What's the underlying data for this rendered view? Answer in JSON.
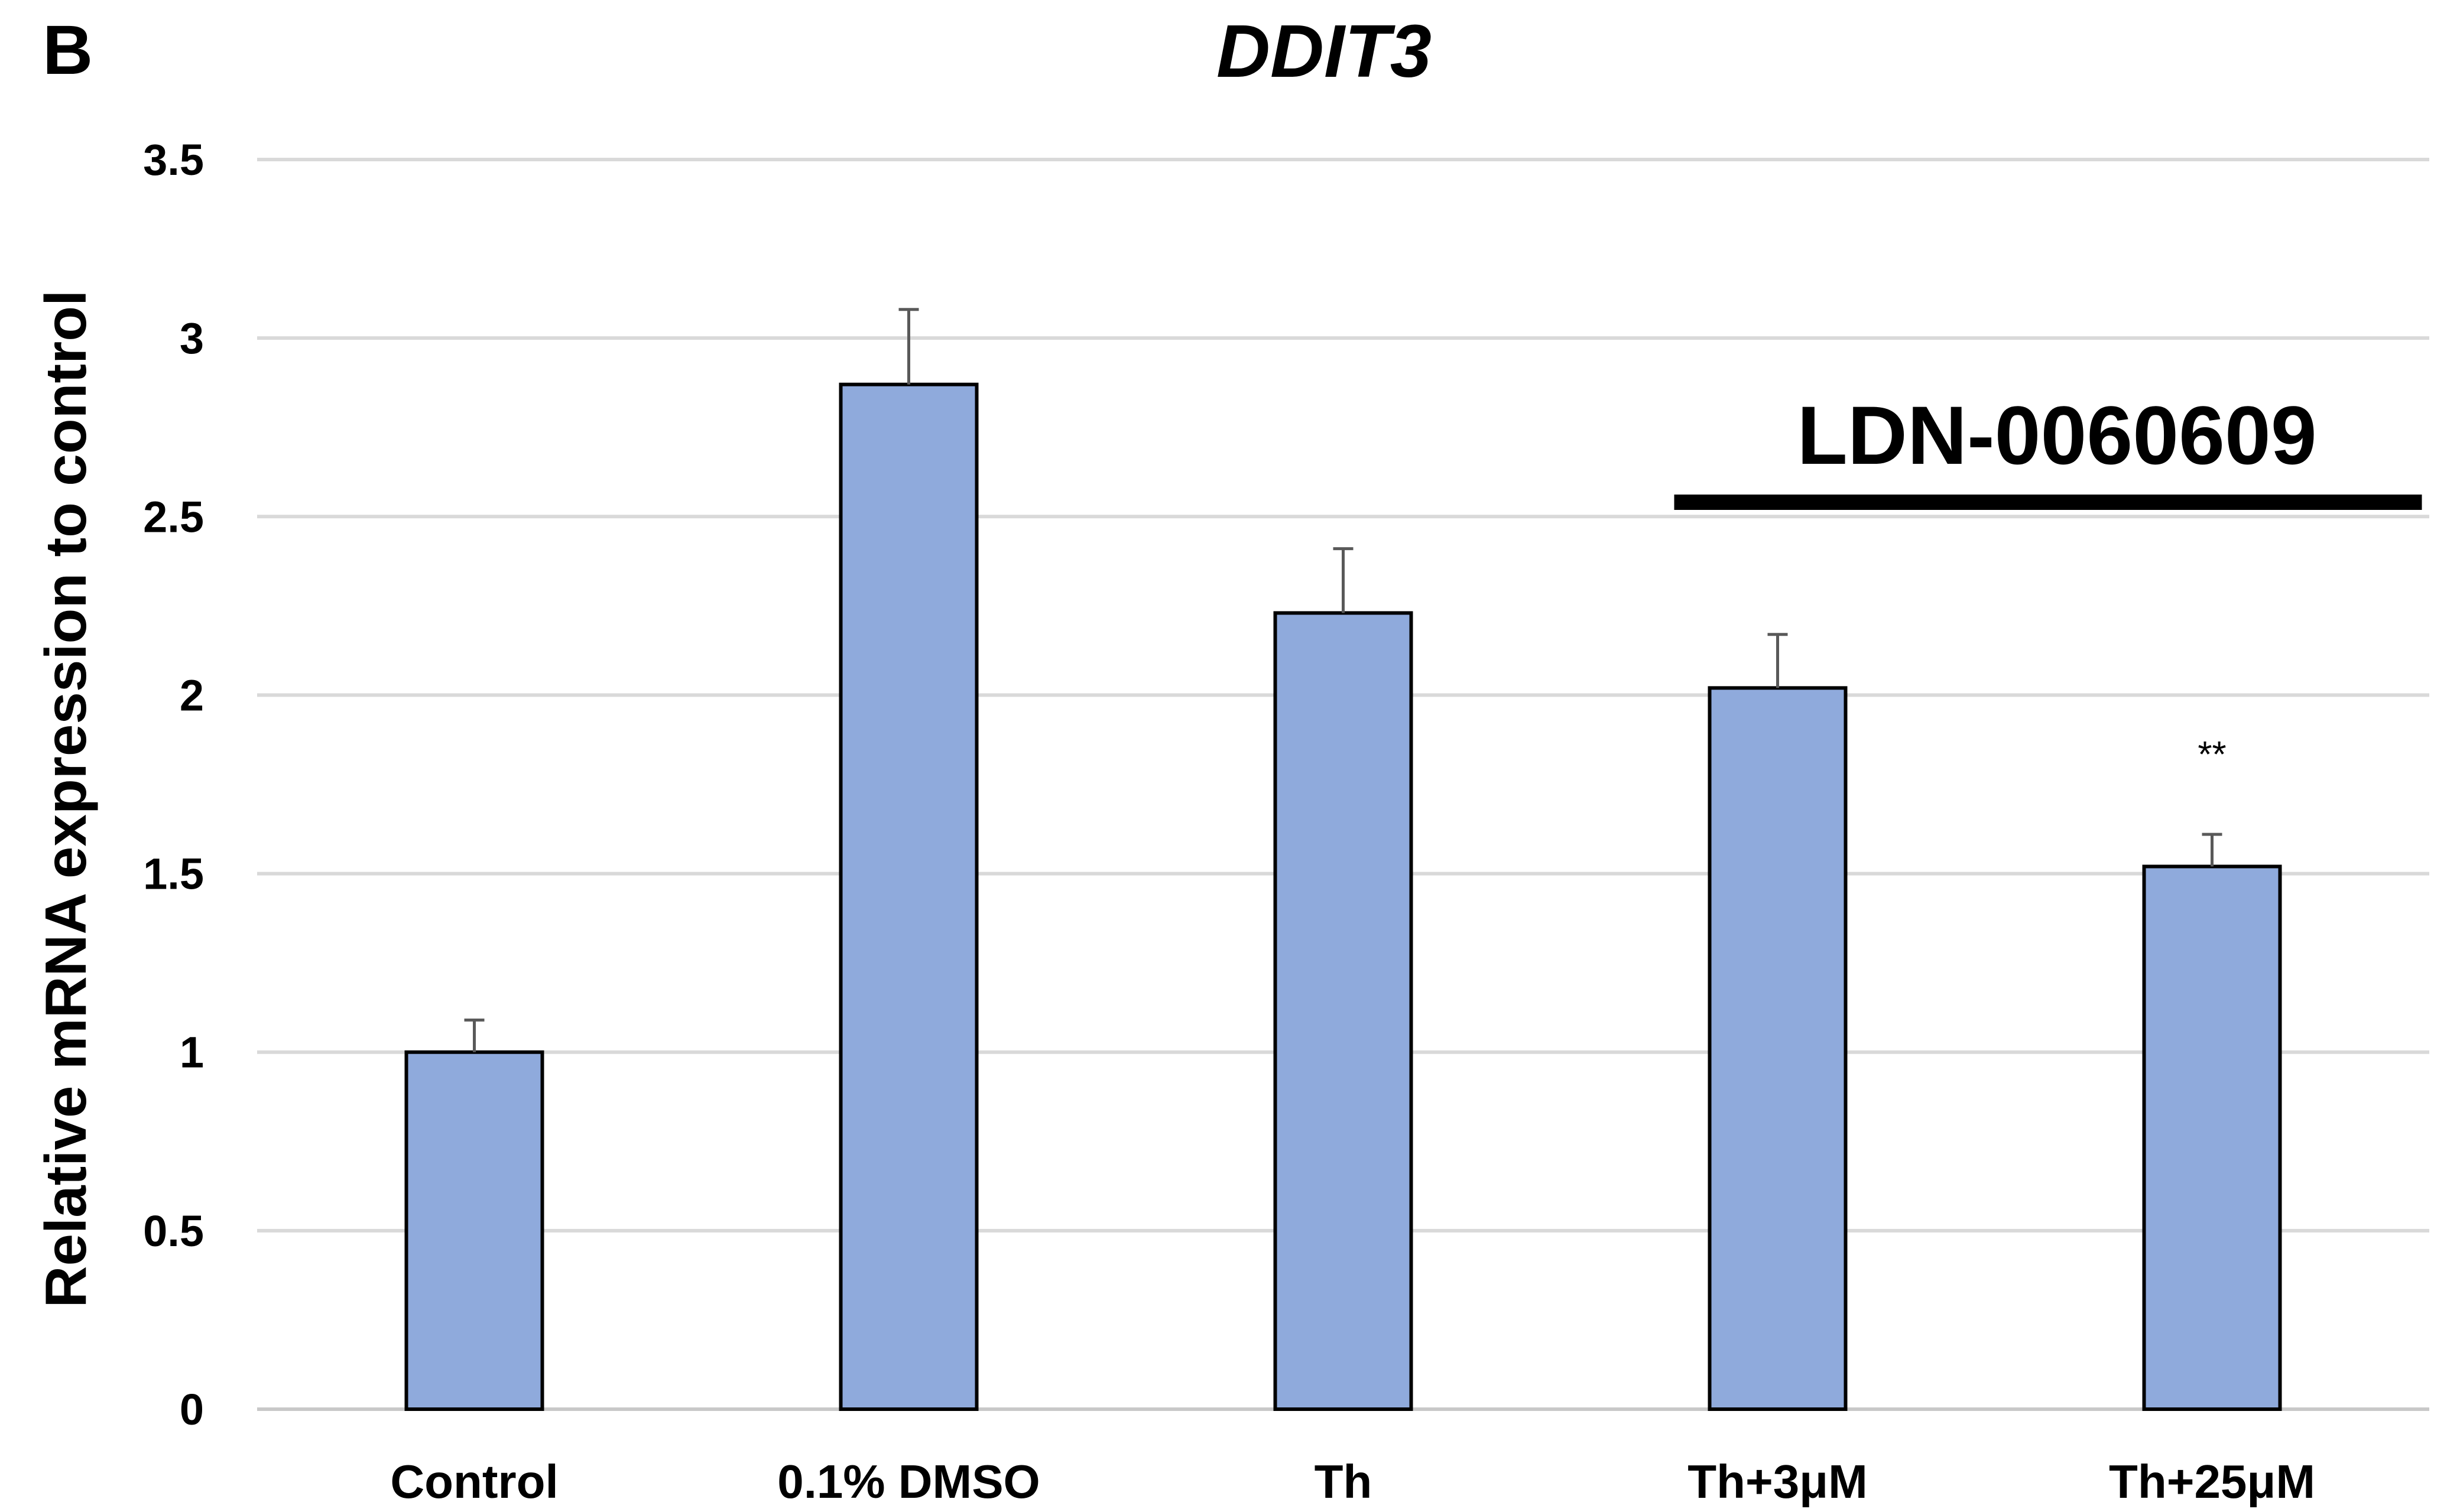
{
  "panel_label": "B",
  "chart_data": {
    "type": "bar",
    "title": "DDIT3",
    "xlabel": "",
    "ylabel": "Relative mRNA expression to control",
    "categories": [
      "Control",
      "0.1% DMSO",
      "Th",
      "Th+3μM",
      "Th+25μM"
    ],
    "values": [
      1.0,
      2.87,
      2.23,
      2.02,
      1.52
    ],
    "errors": [
      0.09,
      0.21,
      0.18,
      0.15,
      0.09
    ],
    "ylim": [
      0,
      3.5
    ],
    "yticks": [
      0,
      0.5,
      1,
      1.5,
      2,
      2.5,
      3,
      3.5
    ],
    "ytick_labels": [
      "0",
      "0.5",
      "1",
      "1.5",
      "2",
      "2.5",
      "3",
      "3.5"
    ],
    "grid": true,
    "bar_color": "#8faadc",
    "annotations": [
      {
        "text": "LDN-0060609",
        "spans_categories": [
          "Th+3μM",
          "Th+25μM"
        ]
      },
      {
        "text": "**",
        "category": "Th+25μM"
      }
    ]
  }
}
